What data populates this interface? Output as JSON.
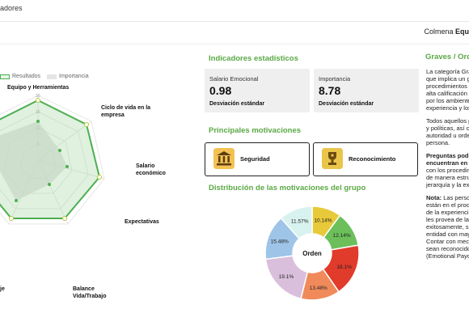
{
  "app": {
    "title": "adores"
  },
  "user": {
    "prefix": "Colmena ",
    "team": "Equ"
  },
  "radar": {
    "legend": {
      "results": "Resultados",
      "importance": "Importancia"
    },
    "axes": [
      "Equipo y Herramientas",
      "Ciclo de vida en la empresa",
      "Salario económico",
      "Expectativas",
      "Balance Vida/Trabajo",
      "je"
    ],
    "ticks": [
      "20",
      "16",
      "12",
      "8",
      "4"
    ],
    "results_color": "#4caf50",
    "importance_color": "#d9d9d9"
  },
  "stats": {
    "title": "Indicadores estadísticos",
    "cards": [
      {
        "label": "Salario Emocional",
        "value": "0.98",
        "sub": "Desviación estándar"
      },
      {
        "label": "Importancia",
        "value": "8.78",
        "sub": "Desviación estándar"
      }
    ]
  },
  "motivations": {
    "title": "Principales motivaciones",
    "items": [
      {
        "label": "Seguridad",
        "icon": "bank-icon"
      },
      {
        "label": "Reconocimiento",
        "icon": "trophy-icon"
      }
    ]
  },
  "distribution": {
    "title": "Distribución de las motivaciones del grupo",
    "center_label": "Orden"
  },
  "chart_data": {
    "type": "pie",
    "title": "Distribución de las motivaciones del grupo",
    "slices": [
      {
        "value": 10.14,
        "label": "10.14%",
        "color": "#e8c93a"
      },
      {
        "value": 12.14,
        "label": "12.14%",
        "color": "#6cbf5a"
      },
      {
        "value": 18.1,
        "label": "18.1%",
        "color": "#e03b2b"
      },
      {
        "value": 13.48,
        "label": "13.48%",
        "color": "#f08a5a"
      },
      {
        "value": 19.1,
        "label": "19.1%",
        "color": "#d9bfdc"
      },
      {
        "value": 15.48,
        "label": "15.48%",
        "color": "#9ec5e8"
      },
      {
        "value": 11.57,
        "label": "11.57%",
        "color": "#d8f2ef"
      }
    ]
  },
  "right": {
    "title": "Graves / Orde",
    "p1": [
      "La categoría Gra",
      "que implica un g",
      "procedimientos",
      "alta calificación",
      "por los ambiente",
      "experiencia y los"
    ],
    "p2": [
      "Todos aquellos p",
      "y políticas, así c",
      "autoridad u orde",
      "persona."
    ],
    "p3_bold": [
      "Preguntas pod",
      "encuentran en"
    ],
    "p3": [
      "con los procedim",
      "de manera estru",
      "jerarquía y la ex"
    ],
    "p4_bold": "Nota:",
    "p4_first": " Las perso",
    "p4": [
      "están en el proc",
      "de la experienci",
      "les provea de la",
      "exitosamente, s",
      "entidad con may",
      "Contar con mec",
      "sean reconocido",
      "(Emotional Payc"
    ]
  }
}
